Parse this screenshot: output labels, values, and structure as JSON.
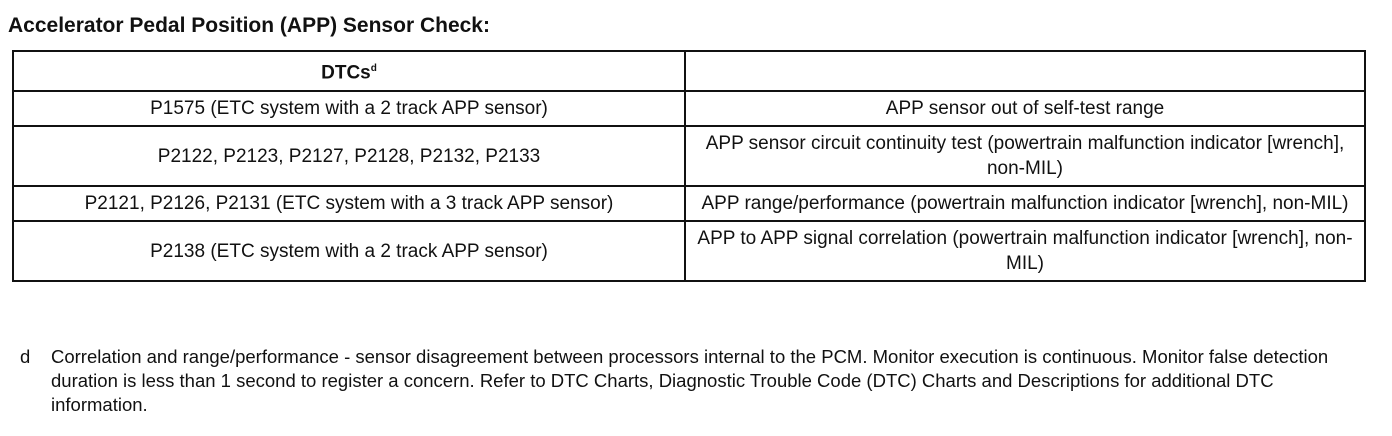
{
  "title": "Accelerator Pedal Position (APP) Sensor Check:",
  "table": {
    "headers": [
      "DTCs",
      ""
    ],
    "header_footnote_mark": "d",
    "rows": [
      [
        "P1575 (ETC system with a 2 track APP sensor)",
        "APP sensor out of self-test range"
      ],
      [
        "P2122, P2123, P2127, P2128, P2132, P2133",
        "APP sensor circuit continuity test (powertrain malfunction indicator [wrench], non-MIL)"
      ],
      [
        "P2121, P2126, P2131 (ETC system with a 3 track APP sensor)",
        "APP range/performance (powertrain malfunction indicator [wrench], non-MIL)"
      ],
      [
        "P2138 (ETC system with a 2 track APP sensor)",
        "APP to APP signal correlation (powertrain malfunction indicator [wrench], non-MIL)"
      ]
    ]
  },
  "footnote": {
    "mark": "d",
    "text": "Correlation and range/performance - sensor disagreement between processors internal to the PCM. Monitor execution is continuous. Monitor false detection duration is less than 1 second to register a concern. Refer to DTC Charts, Diagnostic Trouble Code (DTC) Charts and Descriptions for additional DTC information."
  }
}
